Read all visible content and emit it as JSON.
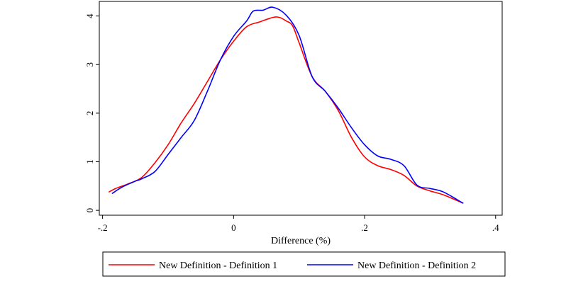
{
  "chart_data": {
    "type": "line",
    "xlabel": "Difference (%)",
    "ylabel": "",
    "xlim": [
      -0.205,
      0.41
    ],
    "ylim": [
      -0.1,
      4.3
    ],
    "x_ticks": [
      -0.2,
      0,
      0.2,
      0.4
    ],
    "x_tick_labels": [
      "-.2",
      "0",
      ".2",
      ".4"
    ],
    "y_ticks": [
      0,
      1,
      2,
      3,
      4
    ],
    "y_tick_labels": [
      "0",
      "1",
      "2",
      "3",
      "4"
    ],
    "grid": false,
    "legend_position": "bottom",
    "series": [
      {
        "name": "New Definition - Definition 1",
        "color": "#ff0000",
        "points": [
          [
            -0.19,
            0.38
          ],
          [
            -0.18,
            0.45
          ],
          [
            -0.16,
            0.55
          ],
          [
            -0.14,
            0.68
          ],
          [
            -0.12,
            0.98
          ],
          [
            -0.1,
            1.35
          ],
          [
            -0.08,
            1.8
          ],
          [
            -0.06,
            2.2
          ],
          [
            -0.04,
            2.65
          ],
          [
            -0.02,
            3.1
          ],
          [
            0.0,
            3.48
          ],
          [
            0.02,
            3.78
          ],
          [
            0.04,
            3.88
          ],
          [
            0.06,
            3.97
          ],
          [
            0.07,
            3.97
          ],
          [
            0.08,
            3.9
          ],
          [
            0.09,
            3.8
          ],
          [
            0.1,
            3.45
          ],
          [
            0.12,
            2.75
          ],
          [
            0.14,
            2.45
          ],
          [
            0.16,
            2.05
          ],
          [
            0.18,
            1.5
          ],
          [
            0.2,
            1.1
          ],
          [
            0.22,
            0.92
          ],
          [
            0.24,
            0.84
          ],
          [
            0.26,
            0.72
          ],
          [
            0.28,
            0.5
          ],
          [
            0.3,
            0.4
          ],
          [
            0.32,
            0.32
          ],
          [
            0.35,
            0.15
          ]
        ]
      },
      {
        "name": "New Definition - Definition 2",
        "color": "#0000ff",
        "points": [
          [
            -0.185,
            0.35
          ],
          [
            -0.17,
            0.48
          ],
          [
            -0.15,
            0.6
          ],
          [
            -0.14,
            0.65
          ],
          [
            -0.12,
            0.8
          ],
          [
            -0.1,
            1.15
          ],
          [
            -0.08,
            1.5
          ],
          [
            -0.06,
            1.85
          ],
          [
            -0.04,
            2.45
          ],
          [
            -0.02,
            3.1
          ],
          [
            0.0,
            3.58
          ],
          [
            0.02,
            3.9
          ],
          [
            0.03,
            4.1
          ],
          [
            0.045,
            4.12
          ],
          [
            0.06,
            4.18
          ],
          [
            0.08,
            4.02
          ],
          [
            0.1,
            3.6
          ],
          [
            0.12,
            2.75
          ],
          [
            0.14,
            2.45
          ],
          [
            0.16,
            2.1
          ],
          [
            0.18,
            1.7
          ],
          [
            0.2,
            1.35
          ],
          [
            0.22,
            1.12
          ],
          [
            0.24,
            1.05
          ],
          [
            0.26,
            0.92
          ],
          [
            0.28,
            0.52
          ],
          [
            0.3,
            0.45
          ],
          [
            0.32,
            0.38
          ],
          [
            0.35,
            0.15
          ]
        ]
      }
    ]
  }
}
